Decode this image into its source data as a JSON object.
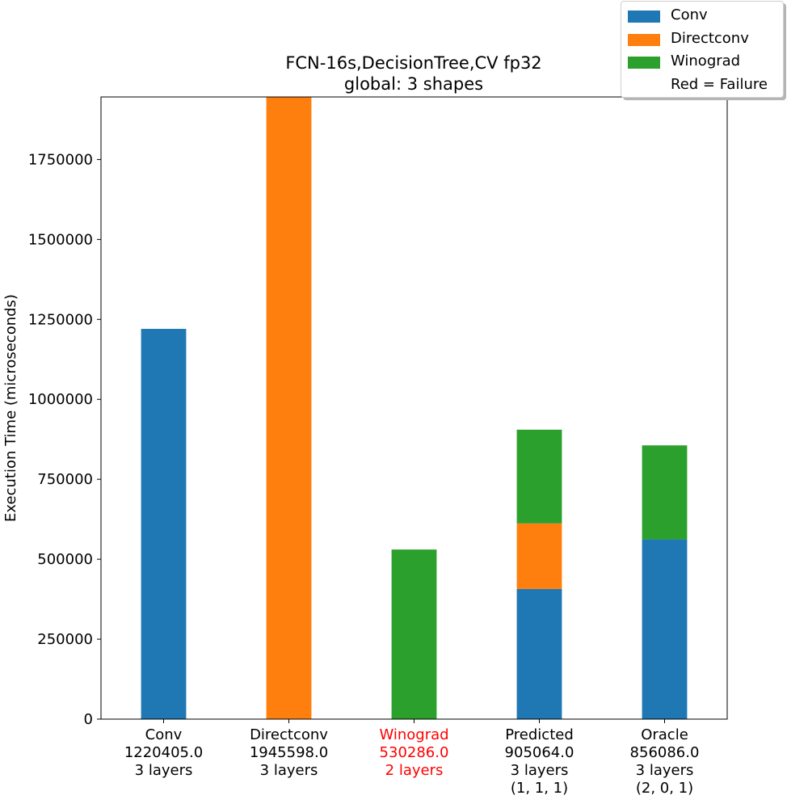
{
  "chart_data": {
    "type": "bar",
    "stacked": true,
    "title": [
      "FCN-16s,DecisionTree,CV fp32",
      "global: 3 shapes"
    ],
    "ylabel": "Execution Time (microseconds)",
    "xlabel": "",
    "ylim": [
      0,
      1945598
    ],
    "yticks": [
      0,
      250000,
      500000,
      750000,
      1000000,
      1250000,
      1500000,
      1750000
    ],
    "grid": false,
    "legend_position": "top-right",
    "categories": [
      {
        "lines": [
          "Conv",
          "1220405.0",
          "3 layers"
        ],
        "failure": false
      },
      {
        "lines": [
          "Directconv",
          "1945598.0",
          "3 layers"
        ],
        "failure": false
      },
      {
        "lines": [
          "Winograd",
          "530286.0",
          "2 layers"
        ],
        "failure": true
      },
      {
        "lines": [
          "Predicted",
          "905064.0",
          "3 layers",
          "(1, 1, 1)"
        ],
        "failure": false
      },
      {
        "lines": [
          "Oracle",
          "856086.0",
          "3 layers",
          "(2, 0, 1)"
        ],
        "failure": false
      }
    ],
    "series": [
      {
        "name": "Conv",
        "color": "#1f77b4",
        "values": [
          1220405,
          0,
          0,
          407000,
          562000
        ]
      },
      {
        "name": "Directconv",
        "color": "#ff7f0e",
        "values": [
          0,
          1945598,
          0,
          205000,
          0
        ]
      },
      {
        "name": "Winograd",
        "color": "#2ca02c",
        "values": [
          0,
          0,
          530286,
          293064,
          294086
        ]
      }
    ],
    "legend": [
      {
        "label": "Conv",
        "color": "#1f77b4"
      },
      {
        "label": "Directconv",
        "color": "#ff7f0e"
      },
      {
        "label": "Winograd",
        "color": "#2ca02c"
      },
      {
        "label": "Red = Failure",
        "color": "#ffffff"
      }
    ],
    "failure_color": "#ff0000"
  }
}
